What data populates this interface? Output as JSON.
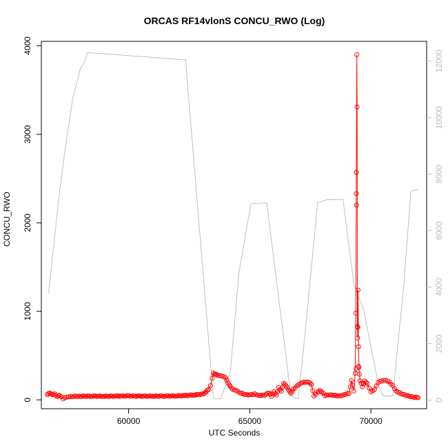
{
  "chart_data": {
    "type": "line",
    "title": "ORCAS RF14vlonS CONCU_RWO (Log)",
    "xlabel": "UTC Seconds",
    "ylabel": "CONCU_RWO",
    "xlim": [
      56400,
      72300
    ],
    "ylim": [
      -100,
      4050
    ],
    "y2lim": [
      -300,
      12700
    ],
    "x_ticks": [
      "60000",
      "65000",
      "70000"
    ],
    "y_ticks": [
      "0",
      "1000",
      "2000",
      "3000",
      "4000"
    ],
    "y2_ticks": [
      "0",
      "2000",
      "4000",
      "6000",
      "8000",
      "10000",
      "12000"
    ],
    "series": [
      {
        "axis": "left",
        "color": "#ff0000",
        "marker": "open-circle",
        "points": [
          [
            56650,
            60
          ],
          [
            56750,
            75
          ],
          [
            56850,
            55
          ],
          [
            56950,
            68
          ],
          [
            57050,
            40
          ],
          [
            57150,
            55
          ],
          [
            57300,
            12
          ],
          [
            57450,
            28
          ],
          [
            57600,
            36
          ],
          [
            57800,
            42
          ],
          [
            58000,
            40
          ],
          [
            58500,
            42
          ],
          [
            59000,
            40
          ],
          [
            59500,
            42
          ],
          [
            60000,
            44
          ],
          [
            60500,
            42
          ],
          [
            61000,
            42
          ],
          [
            61500,
            43
          ],
          [
            62000,
            45
          ],
          [
            62300,
            48
          ],
          [
            62600,
            52
          ],
          [
            62900,
            60
          ],
          [
            63100,
            70
          ],
          [
            63200,
            95
          ],
          [
            63300,
            120
          ],
          [
            63380,
            160
          ],
          [
            63450,
            240
          ],
          [
            63500,
            300
          ],
          [
            63600,
            290
          ],
          [
            63700,
            280
          ],
          [
            63850,
            270
          ],
          [
            64000,
            250
          ],
          [
            64100,
            190
          ],
          [
            64200,
            150
          ],
          [
            64300,
            120
          ],
          [
            64450,
            110
          ],
          [
            64600,
            80
          ],
          [
            64800,
            60
          ],
          [
            65000,
            55
          ],
          [
            65200,
            65
          ],
          [
            65400,
            50
          ],
          [
            65600,
            55
          ],
          [
            65800,
            80
          ],
          [
            65900,
            40
          ],
          [
            66000,
            90
          ],
          [
            66100,
            50
          ],
          [
            66200,
            140
          ],
          [
            66300,
            100
          ],
          [
            66400,
            190
          ],
          [
            66500,
            160
          ],
          [
            66600,
            110
          ],
          [
            66700,
            70
          ],
          [
            66800,
            120
          ],
          [
            66950,
            160
          ],
          [
            67100,
            190
          ],
          [
            67300,
            200
          ],
          [
            67450,
            195
          ],
          [
            67550,
            170
          ],
          [
            67650,
            40
          ],
          [
            67800,
            90
          ],
          [
            67900,
            110
          ],
          [
            68100,
            50
          ],
          [
            68300,
            55
          ],
          [
            68500,
            50
          ],
          [
            68700,
            45
          ],
          [
            68900,
            60
          ],
          [
            69100,
            75
          ],
          [
            69200,
            220
          ],
          [
            69300,
            100
          ],
          [
            69350,
            300
          ],
          [
            69380,
            980
          ],
          [
            69400,
            2570
          ],
          [
            69420,
            3900
          ],
          [
            69430,
            3310
          ],
          [
            69440,
            830
          ],
          [
            69450,
            700
          ],
          [
            69470,
            1240
          ],
          [
            69490,
            600
          ],
          [
            69510,
            370
          ],
          [
            69550,
            220
          ],
          [
            69650,
            150
          ],
          [
            69750,
            210
          ],
          [
            69850,
            180
          ],
          [
            70000,
            90
          ],
          [
            70150,
            120
          ],
          [
            70300,
            200
          ],
          [
            70450,
            215
          ],
          [
            70600,
            220
          ],
          [
            70750,
            200
          ],
          [
            70900,
            160
          ],
          [
            71050,
            100
          ],
          [
            71250,
            70
          ],
          [
            71450,
            50
          ],
          [
            71650,
            35
          ],
          [
            71850,
            28
          ],
          [
            71950,
            25
          ]
        ],
        "outliers": [
          [
            69400,
            2330
          ],
          [
            69410,
            2200
          ],
          [
            69390,
            350
          ],
          [
            69460,
            820
          ],
          [
            69480,
            380
          ],
          [
            69520,
            290
          ]
        ]
      },
      {
        "axis": "right",
        "color": "#bdbdbd",
        "marker": "none",
        "points": [
          [
            56700,
            3800
          ],
          [
            57100,
            7000
          ],
          [
            57400,
            9000
          ],
          [
            57700,
            10700
          ],
          [
            58000,
            11700
          ],
          [
            58200,
            12000
          ],
          [
            58300,
            12300
          ],
          [
            62300,
            12050
          ],
          [
            62350,
            12050
          ],
          [
            63500,
            50
          ],
          [
            63800,
            50
          ],
          [
            64200,
            1000
          ],
          [
            64550,
            4500
          ],
          [
            65050,
            6950
          ],
          [
            65700,
            6980
          ],
          [
            66700,
            150
          ],
          [
            67000,
            50
          ],
          [
            67300,
            2500
          ],
          [
            67800,
            7000
          ],
          [
            68200,
            7100
          ],
          [
            68850,
            7100
          ],
          [
            69300,
            4100
          ],
          [
            69700,
            3200
          ],
          [
            70300,
            600
          ],
          [
            70500,
            150
          ],
          [
            70900,
            150
          ],
          [
            71350,
            4000
          ],
          [
            71650,
            7400
          ],
          [
            71950,
            7450
          ]
        ]
      }
    ]
  }
}
